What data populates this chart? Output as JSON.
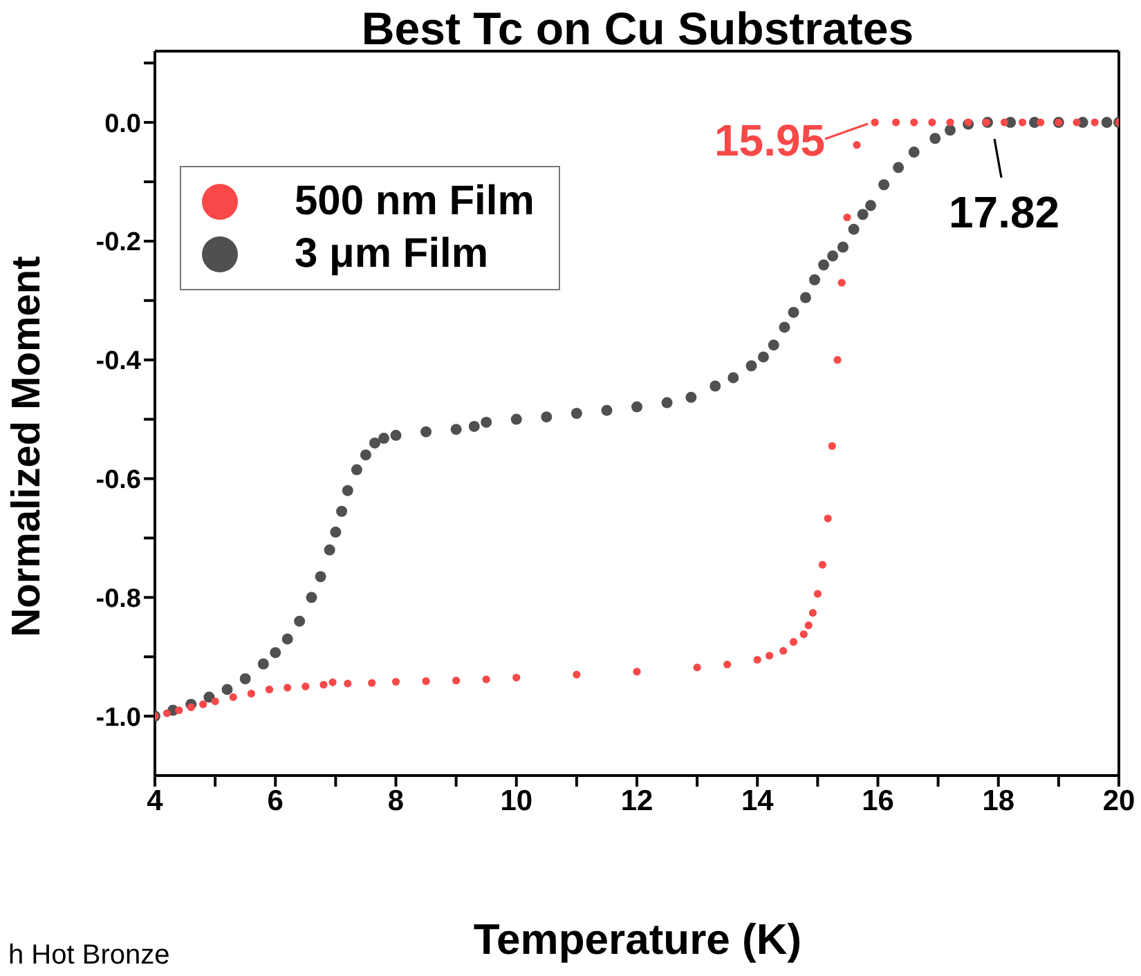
{
  "chart_data": {
    "type": "scatter",
    "title": "Best Tc on Cu Substrates",
    "xlabel": "Temperature (K)",
    "ylabel": "Normalized Moment",
    "xlim": [
      4,
      20
    ],
    "ylim": [
      -1.1,
      0.12
    ],
    "xticks": [
      4,
      {
        "value": 5,
        "label": null
      },
      6,
      {
        "value": 7,
        "label": null
      },
      8,
      {
        "value": 9,
        "label": null
      },
      10,
      {
        "value": 11,
        "label": null
      },
      12,
      {
        "value": 13,
        "label": null
      },
      14,
      {
        "value": 15,
        "label": null
      },
      16,
      {
        "value": 17,
        "label": null
      },
      18,
      {
        "value": 19,
        "label": null
      },
      20
    ],
    "yticks": [
      {
        "value": -1.0,
        "label": "-1.0"
      },
      {
        "value": -0.9,
        "label": null
      },
      {
        "value": -0.8,
        "label": "-0.8"
      },
      {
        "value": -0.7,
        "label": null
      },
      {
        "value": -0.6,
        "label": "-0.6"
      },
      {
        "value": -0.5,
        "label": null
      },
      {
        "value": -0.4,
        "label": "-0.4"
      },
      {
        "value": -0.3,
        "label": null
      },
      {
        "value": -0.2,
        "label": "-0.2"
      },
      {
        "value": -0.1,
        "label": null
      },
      {
        "value": 0,
        "label": "0.0"
      },
      {
        "value": 0.1,
        "label": null
      }
    ],
    "marker": "circle",
    "legend": "top left",
    "series": [
      {
        "name": "500 nm Film",
        "color": "#f84848",
        "x": [
          4.0,
          4.2,
          4.4,
          4.6,
          4.8,
          5.0,
          5.3,
          5.6,
          5.9,
          6.2,
          6.5,
          6.8,
          6.95,
          7.2,
          7.6,
          8.0,
          8.5,
          9.0,
          9.5,
          10.0,
          11.0,
          12.0,
          13.0,
          13.5,
          14.0,
          14.2,
          14.43,
          14.6,
          14.77,
          14.85,
          14.92,
          15.0,
          15.08,
          15.17,
          15.24,
          15.33,
          15.4,
          15.49,
          15.65,
          15.95,
          16.3,
          16.6,
          16.9,
          17.2,
          17.5,
          17.8,
          18.1,
          18.4,
          18.7,
          19.0,
          19.3,
          19.6,
          20.0
        ],
        "values": [
          -1.0,
          -0.995,
          -0.99,
          -0.985,
          -0.98,
          -0.975,
          -0.968,
          -0.962,
          -0.955,
          -0.952,
          -0.95,
          -0.947,
          -0.943,
          -0.945,
          -0.944,
          -0.942,
          -0.941,
          -0.94,
          -0.938,
          -0.935,
          -0.93,
          -0.925,
          -0.918,
          -0.913,
          -0.905,
          -0.898,
          -0.89,
          -0.875,
          -0.862,
          -0.847,
          -0.826,
          -0.794,
          -0.745,
          -0.667,
          -0.545,
          -0.4,
          -0.27,
          -0.16,
          -0.038,
          0,
          0,
          0,
          0,
          0,
          0,
          0,
          0,
          0,
          0,
          0,
          0,
          0,
          0
        ]
      },
      {
        "name": "3 μm Film",
        "color": "#505050",
        "x": [
          4.0,
          4.3,
          4.6,
          4.9,
          5.2,
          5.5,
          5.8,
          6.0,
          6.2,
          6.4,
          6.6,
          6.75,
          6.9,
          7.0,
          7.1,
          7.2,
          7.35,
          7.5,
          7.65,
          7.8,
          8.0,
          8.5,
          9.0,
          9.3,
          9.5,
          10.0,
          10.5,
          11.0,
          11.5,
          12.0,
          12.5,
          12.9,
          13.3,
          13.6,
          13.9,
          14.1,
          14.27,
          14.45,
          14.6,
          14.8,
          14.95,
          15.1,
          15.25,
          15.42,
          15.6,
          15.75,
          15.88,
          16.1,
          16.34,
          16.6,
          16.95,
          17.2,
          17.5,
          17.82,
          18.2,
          18.6,
          19.0,
          19.4,
          19.8,
          20.0
        ],
        "values": [
          -1.0,
          -0.99,
          -0.98,
          -0.968,
          -0.955,
          -0.937,
          -0.912,
          -0.893,
          -0.87,
          -0.84,
          -0.8,
          -0.765,
          -0.72,
          -0.69,
          -0.655,
          -0.62,
          -0.585,
          -0.56,
          -0.54,
          -0.532,
          -0.527,
          -0.521,
          -0.517,
          -0.512,
          -0.505,
          -0.5,
          -0.496,
          -0.49,
          -0.485,
          -0.479,
          -0.472,
          -0.463,
          -0.444,
          -0.43,
          -0.41,
          -0.395,
          -0.375,
          -0.345,
          -0.32,
          -0.295,
          -0.265,
          -0.24,
          -0.225,
          -0.21,
          -0.18,
          -0.155,
          -0.14,
          -0.105,
          -0.076,
          -0.05,
          -0.027,
          -0.013,
          -0.003,
          0,
          0,
          0,
          0,
          0,
          0,
          0
        ]
      }
    ],
    "annotations": [
      {
        "text": "15.95",
        "x": 15.95,
        "y": 0
      },
      {
        "text": "17.82",
        "x": 17.82,
        "y": 0
      },
      "h Hot Bronze"
    ]
  }
}
